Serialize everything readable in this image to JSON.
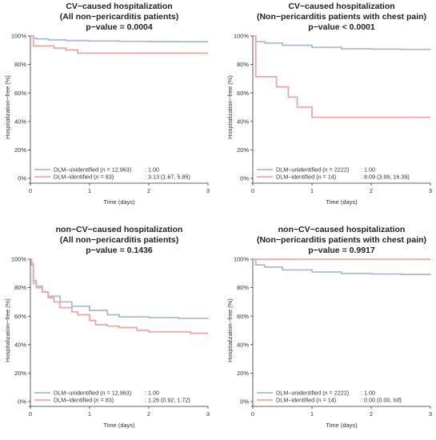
{
  "colors": {
    "unidentified": "#a9bcd8",
    "identified": "#f4a6a3",
    "axis": "#333333"
  },
  "chart_data": [
    {
      "type": "line",
      "title": [
        "CV−caused hospitalization",
        "(All non−pericarditis patients)",
        "p−value = 0.0004"
      ],
      "xlabel": "Time (days)",
      "ylabel": "Hospitalization−free (%)",
      "xlim": [
        0,
        3
      ],
      "ylim": [
        0,
        100
      ],
      "xticks": [
        "0",
        "1",
        "2",
        "3"
      ],
      "yticks": [
        "0%",
        "20%",
        "40%",
        "60%",
        "80%",
        "100%"
      ],
      "legend_position": "bottom-left",
      "series": [
        {
          "key": "unidentified",
          "legend_name": "DLM−unidentified (",
          "legend_n": "n",
          "legend_count": " = 12,963)",
          "legend_stat": ": 1.00",
          "x": [
            0,
            0.05,
            0.1,
            0.3,
            0.6,
            1.0,
            1.5,
            2.0,
            2.5,
            3.0
          ],
          "y": [
            100,
            98.5,
            98.0,
            97.3,
            96.8,
            96.5,
            96.2,
            96.1,
            96.0,
            96.0
          ]
        },
        {
          "key": "identified",
          "legend_name": "DLM−identified (",
          "legend_n": "n",
          "legend_count": " = 83)",
          "legend_stat": ": 3.13 (1.67, 5.85)",
          "x": [
            0,
            0.05,
            0.4,
            0.6,
            0.8,
            3.0
          ],
          "y": [
            100,
            93,
            91.5,
            90.2,
            88,
            88
          ]
        }
      ]
    },
    {
      "type": "line",
      "title": [
        "CV−caused hospitalization",
        "(Non−pericarditis patients with chest pain)",
        "p−value < 0.0001"
      ],
      "xlabel": "Time (days)",
      "ylabel": "Hospitalization−free (%)",
      "xlim": [
        0,
        3
      ],
      "ylim": [
        0,
        100
      ],
      "xticks": [
        "0",
        "1",
        "2",
        "3"
      ],
      "yticks": [
        "0%",
        "20%",
        "40%",
        "60%",
        "80%",
        "100%"
      ],
      "legend_position": "bottom-left",
      "series": [
        {
          "key": "unidentified",
          "legend_name": "DLM−unidentified (",
          "legend_n": "n",
          "legend_count": " = 2222)",
          "legend_stat": ": 1.00",
          "x": [
            0,
            0.05,
            0.2,
            0.5,
            1.0,
            1.5,
            2.0,
            2.5,
            3.0
          ],
          "y": [
            100,
            96,
            95,
            93.5,
            92,
            91,
            90.8,
            90.6,
            90.5
          ]
        },
        {
          "key": "identified",
          "legend_name": "DLM−identified (",
          "legend_n": "n",
          "legend_count": " = 14)",
          "legend_stat": ": 8.09 (3.99, 16.39)",
          "x": [
            0,
            0.05,
            0.4,
            0.6,
            0.75,
            1.0,
            3.0
          ],
          "y": [
            100,
            71.4,
            64.3,
            57.1,
            50,
            42.9,
            42.9
          ]
        }
      ]
    },
    {
      "type": "line",
      "title": [
        "non−CV−caused hospitalization",
        "(All non−pericarditis patients)",
        "p−value = 0.1436"
      ],
      "xlabel": "Time (days)",
      "ylabel": "Hospitalization−free (%)",
      "xlim": [
        0,
        3
      ],
      "ylim": [
        0,
        100
      ],
      "xticks": [
        "0",
        "1",
        "2",
        "3"
      ],
      "yticks": [
        "0%",
        "20%",
        "40%",
        "60%",
        "80%",
        "100%"
      ],
      "legend_position": "bottom-left",
      "series": [
        {
          "key": "unidentified",
          "legend_name": "DLM−unidentified (",
          "legend_n": "n",
          "legend_count": " = 12,963)",
          "legend_stat": ": 1.00",
          "x": [
            0,
            0.02,
            0.05,
            0.1,
            0.2,
            0.3,
            0.5,
            0.7,
            1.0,
            1.3,
            1.5,
            2.0,
            2.5,
            3.0
          ],
          "y": [
            100,
            97,
            85,
            81,
            77,
            74,
            70,
            67,
            64,
            61,
            59.5,
            59,
            58.5,
            58
          ]
        },
        {
          "key": "identified",
          "legend_name": "DLM−identified (",
          "legend_n": "n",
          "legend_count": " = 83)",
          "legend_stat": ": 1.26 (0.92, 1.72)",
          "x": [
            0,
            0.02,
            0.05,
            0.1,
            0.2,
            0.3,
            0.4,
            0.5,
            0.7,
            0.8,
            1.0,
            1.1,
            1.3,
            1.5,
            1.8,
            2.0,
            2.5,
            2.7,
            3.0
          ],
          "y": [
            100,
            96,
            83,
            80,
            77,
            73,
            70,
            66,
            63,
            61,
            57,
            54,
            53,
            52,
            50,
            49,
            49,
            48,
            48
          ]
        }
      ]
    },
    {
      "type": "line",
      "title": [
        "non−CV−caused hospitalization",
        "(Non−pericarditis patients with chest pain)",
        "p−value = 0.9917"
      ],
      "xlabel": "Time (days)",
      "ylabel": "Hospitalization−free (%)",
      "xlim": [
        0,
        3
      ],
      "ylim": [
        0,
        100
      ],
      "xticks": [
        "0",
        "1",
        "2",
        "3"
      ],
      "yticks": [
        "0%",
        "20%",
        "40%",
        "60%",
        "80%",
        "100%"
      ],
      "legend_position": "bottom-left",
      "series": [
        {
          "key": "unidentified",
          "legend_name": "DLM−unidentified (",
          "legend_n": "n",
          "legend_count": " = 2222)",
          "legend_stat": ": 1.00",
          "x": [
            0,
            0.05,
            0.2,
            0.5,
            1.0,
            1.5,
            2.0,
            2.5,
            3.0
          ],
          "y": [
            100,
            96,
            94.5,
            92.5,
            91,
            90,
            89.6,
            89.3,
            89
          ]
        },
        {
          "key": "identified",
          "legend_name": "DLM−identified (",
          "legend_n": "n",
          "legend_count": " = 14)",
          "legend_stat": ": 0.00 (0.00, Inf)",
          "x": [
            0,
            3.0
          ],
          "y": [
            100,
            100
          ]
        }
      ]
    }
  ]
}
